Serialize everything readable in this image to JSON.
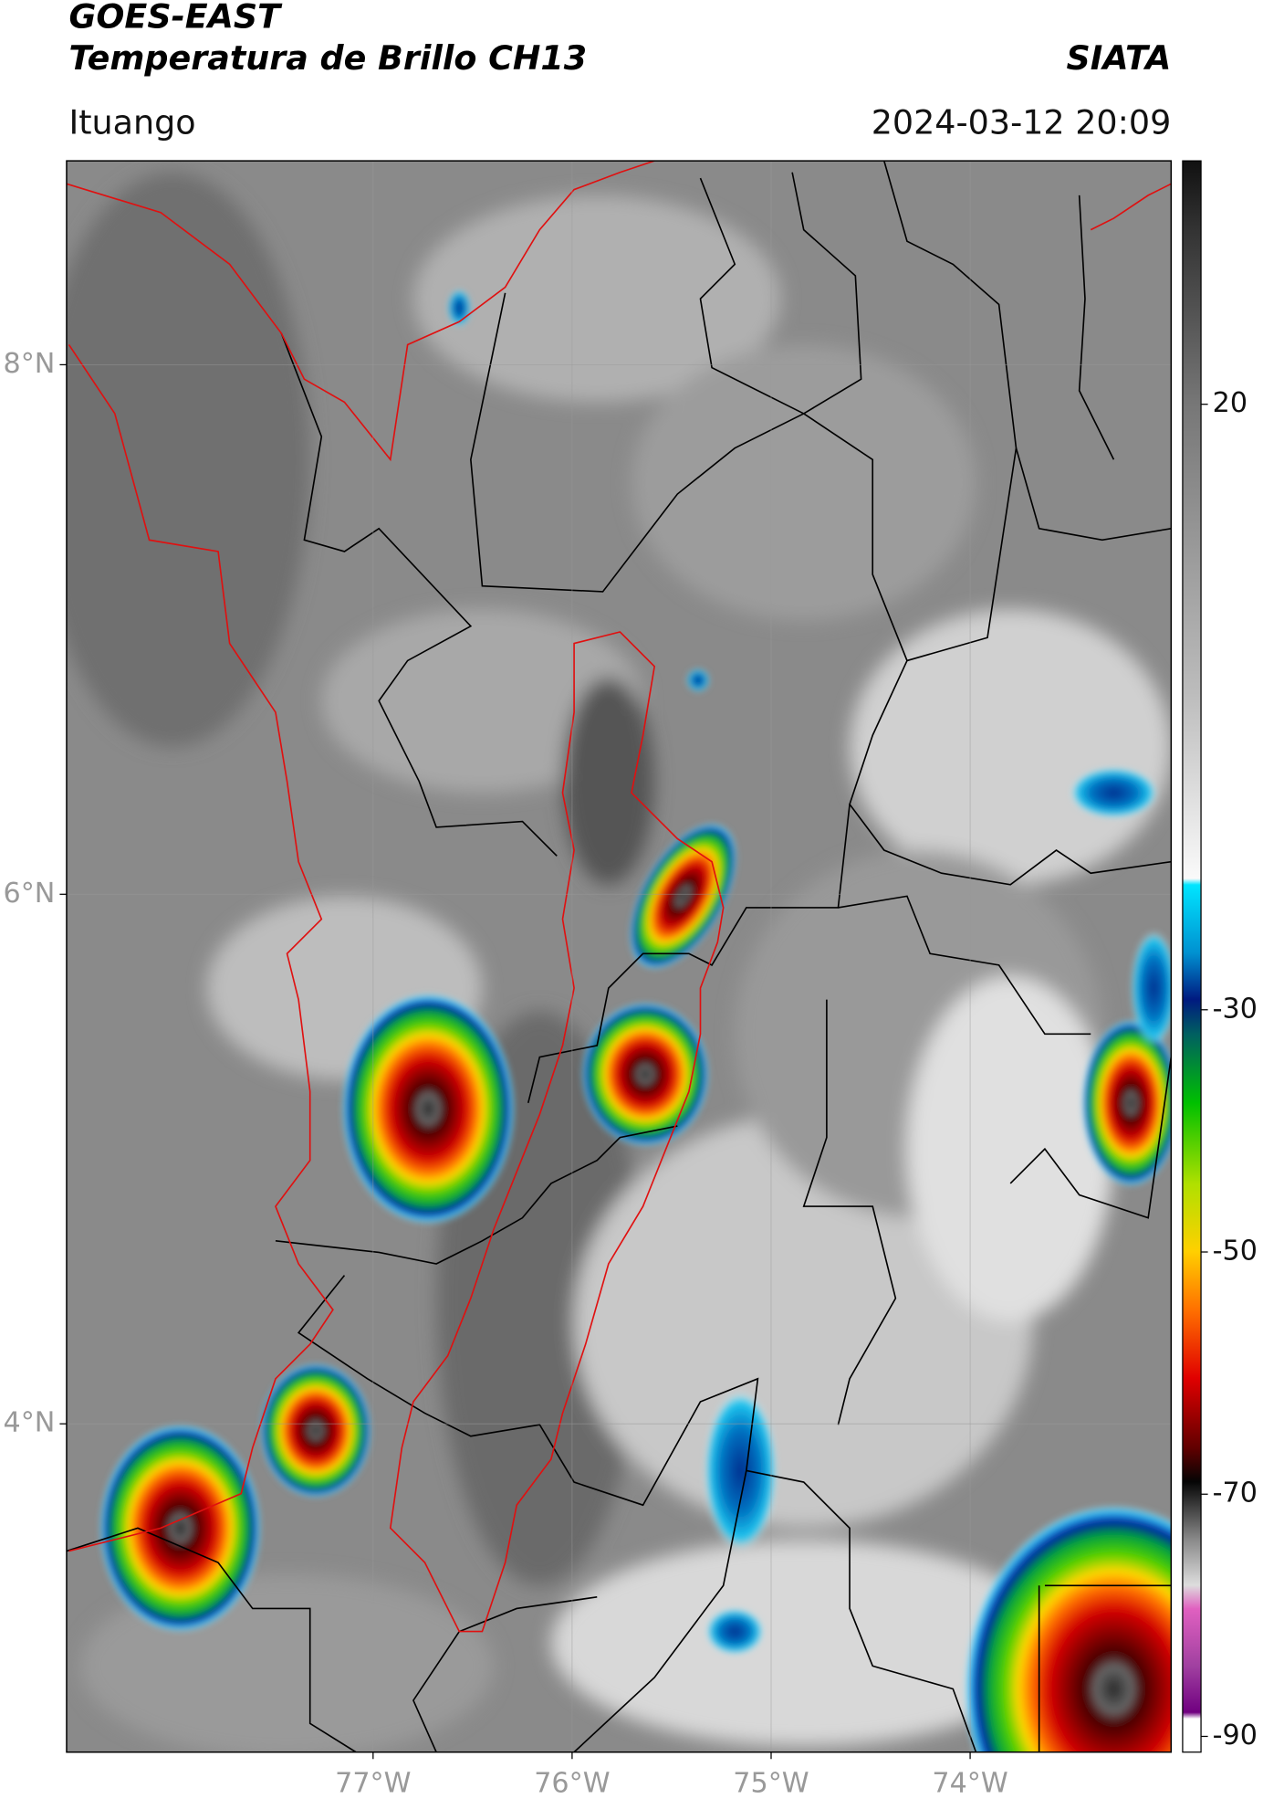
{
  "header": {
    "title": "GOES-EAST",
    "subtitle": "Temperatura de Brillo CH13",
    "organization": "SIATA",
    "region": "Ituango",
    "datetime": "2024-03-12 20:09"
  },
  "map": {
    "lonlim": [
      -78.54,
      -72.99
    ],
    "latlim": [
      2.76,
      8.77
    ],
    "lat_ticks": [
      {
        "value": 8,
        "label": "8°N"
      },
      {
        "value": 6,
        "label": "6°N"
      },
      {
        "value": 4,
        "label": "4°N"
      }
    ],
    "lon_ticks": [
      {
        "value": -77,
        "label": "77°W"
      },
      {
        "value": -76,
        "label": "76°W"
      },
      {
        "value": -75,
        "label": "75°W"
      },
      {
        "value": -74,
        "label": "74°W"
      }
    ]
  },
  "colorbar": {
    "lim": [
      -91.3,
      40.1
    ],
    "ticks": [
      20,
      -30,
      -50,
      -70,
      -90
    ]
  }
}
